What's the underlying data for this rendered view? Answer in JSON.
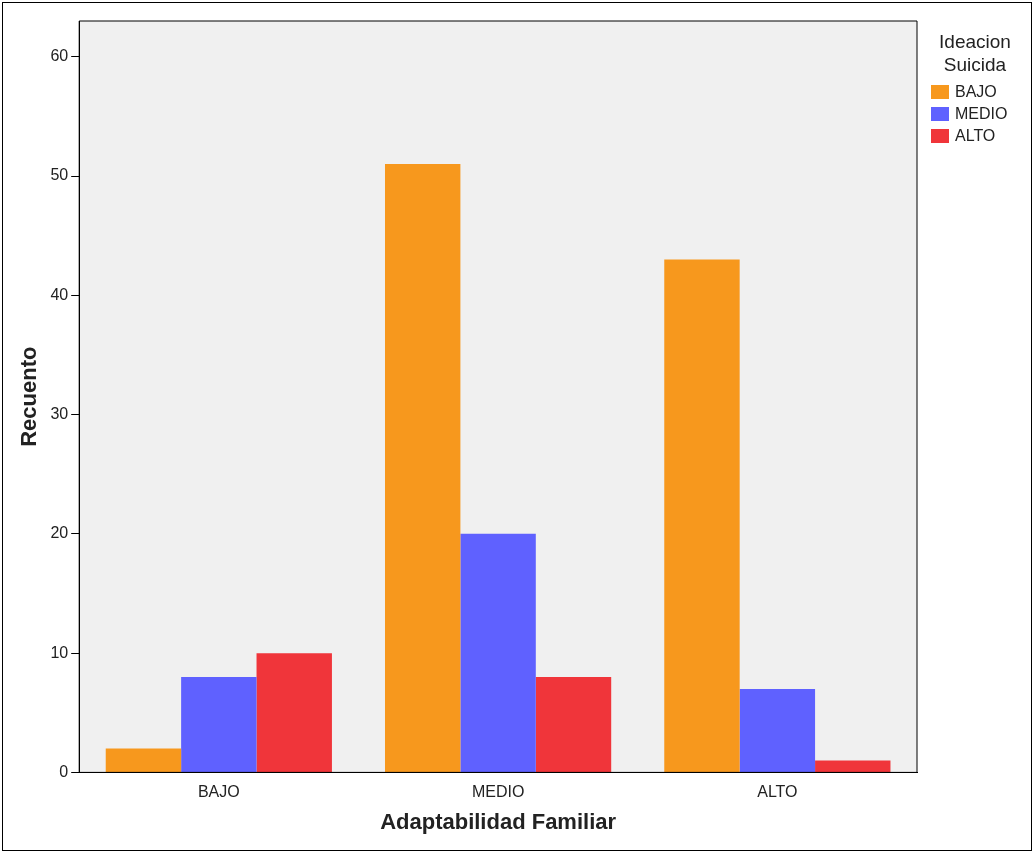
{
  "chart_data": {
    "type": "bar",
    "xlabel": "Adaptabilidad Familiar",
    "ylabel": "Recuento",
    "legend_title": "Ideacion Suicida",
    "categories": [
      "BAJO",
      "MEDIO",
      "ALTO"
    ],
    "series": [
      {
        "name": "BAJO",
        "color": "#f7981d",
        "values": [
          2,
          51,
          43
        ]
      },
      {
        "name": "MEDIO",
        "color": "#5f61ff",
        "values": [
          8,
          20,
          7
        ]
      },
      {
        "name": "ALTO",
        "color": "#f0353a",
        "values": [
          10,
          8,
          1
        ]
      }
    ],
    "ylim": [
      0,
      63
    ],
    "yticks": [
      0,
      10,
      20,
      30,
      40,
      50,
      60
    ],
    "grid": false,
    "legend": "top right"
  }
}
